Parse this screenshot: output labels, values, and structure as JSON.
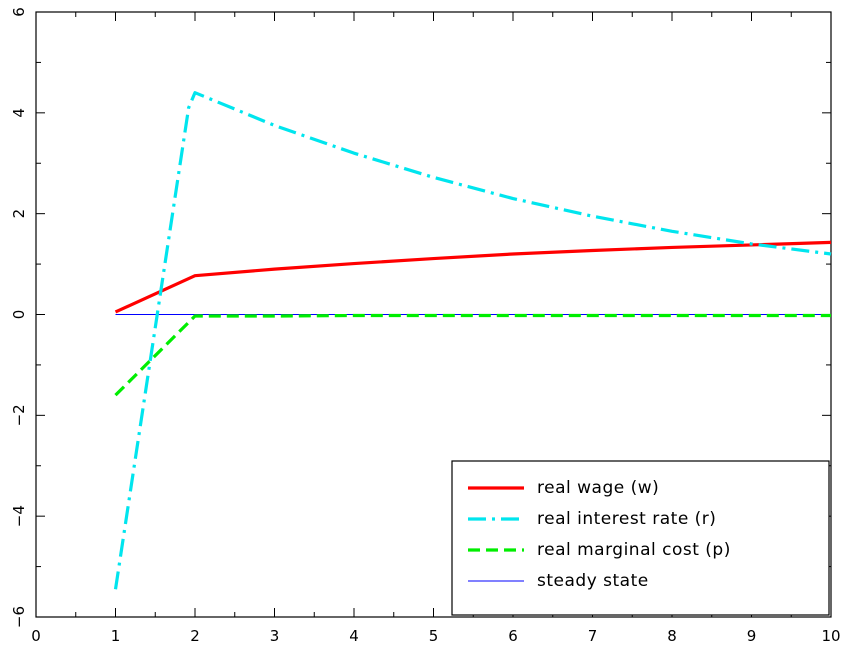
{
  "chart_data": {
    "type": "line",
    "x": [
      1,
      2,
      3,
      4,
      5,
      6,
      7,
      8,
      9,
      10
    ],
    "xlim": [
      0,
      10
    ],
    "ylim": [
      -6,
      6
    ],
    "xticks": [
      0,
      1,
      2,
      3,
      4,
      5,
      6,
      7,
      8,
      9,
      10
    ],
    "yticks": [
      -6,
      -4,
      -2,
      0,
      2,
      4,
      6
    ],
    "xtick_labels": [
      "0",
      "1",
      "2",
      "3",
      "4",
      "5",
      "6",
      "7",
      "8",
      "9",
      "10"
    ],
    "ytick_labels": [
      "−6",
      "−4",
      "−2",
      "0",
      "2",
      "4",
      "6"
    ],
    "grid": false,
    "legend_placement": "bottom-right",
    "series": [
      {
        "name": "real wage (w)",
        "color": "#ff0000",
        "style": "solid",
        "x": [
          1,
          2,
          3,
          4,
          5,
          6,
          7,
          8,
          9,
          10
        ],
        "values": [
          0.05,
          0.77,
          0.9,
          1.01,
          1.11,
          1.2,
          1.27,
          1.33,
          1.38,
          1.43
        ]
      },
      {
        "name": "real interest rate (r)",
        "color": "#00e5ee",
        "style": "dash-dot",
        "x": [
          1,
          1.92,
          2,
          3,
          4,
          5,
          6,
          7,
          8,
          9,
          10
        ],
        "values": [
          -5.45,
          4.1,
          4.4,
          3.75,
          3.2,
          2.72,
          2.3,
          1.95,
          1.65,
          1.4,
          1.2
        ]
      },
      {
        "name": "real marginal cost (p)",
        "color": "#00ee00",
        "style": "dashed",
        "x": [
          1,
          2,
          3,
          4,
          5,
          6,
          7,
          8,
          9,
          10
        ],
        "values": [
          -1.6,
          -0.03,
          -0.03,
          -0.02,
          -0.02,
          -0.02,
          -0.02,
          -0.02,
          -0.02,
          -0.02
        ]
      },
      {
        "name": "steady state",
        "color": "#0000ff",
        "style": "thin",
        "x": [
          1,
          10
        ],
        "values": [
          0,
          0
        ]
      }
    ]
  }
}
